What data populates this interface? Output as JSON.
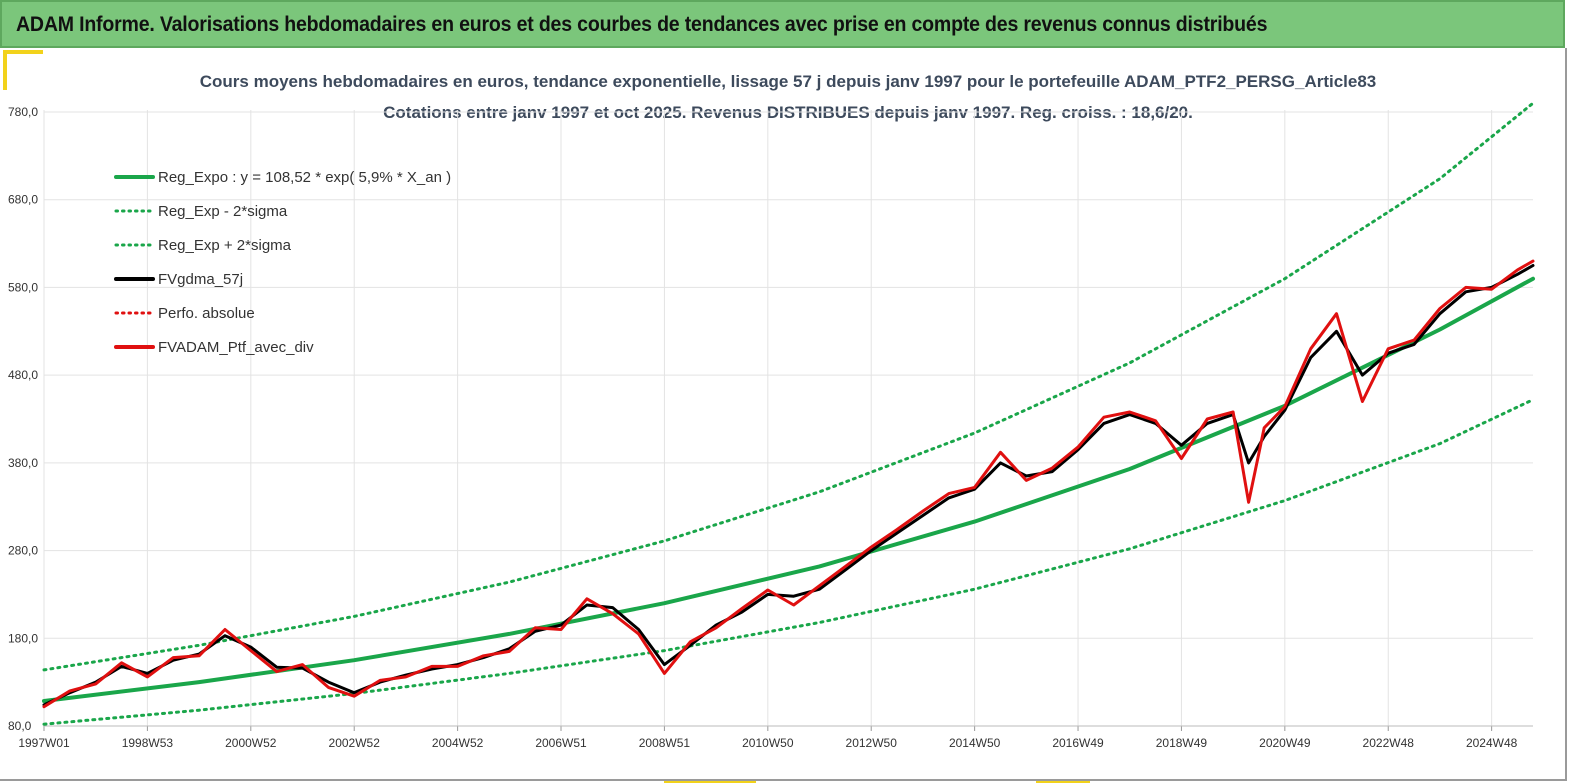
{
  "header": {
    "title": "ADAM Informe. Valorisations hebdomadaires en euros et des courbes de tendances avec prise en compte des revenus connus distribués"
  },
  "colors": {
    "header_bg": "#7bc67b",
    "reg_green": "#1aa64a",
    "black": "#000000",
    "red": "#e01010",
    "grid": "#e3e3e3"
  },
  "chart_data": {
    "type": "line",
    "title": "Cours moyens hebdomadaires  en euros, tendance exponentielle, lissage 57 j depuis janv 1997 pour le portefeuille ADAM_PTF2_PERSG_Article83",
    "subtitle": "Cotations  entre janv 1997 et oct 2025. Revenus DISTRIBUES depuis janv 1997. Reg. croiss. : 18,6/20.",
    "xlabel": "",
    "ylabel": "",
    "ylim": [
      80,
      790
    ],
    "yticks": [
      "780,0",
      "680,0",
      "580,0",
      "480,0",
      "380,0",
      "280,0",
      "180,0",
      "80,0"
    ],
    "ytick_values": [
      780,
      680,
      580,
      480,
      380,
      280,
      180,
      80
    ],
    "xticks": [
      "1997W01",
      "1998W53",
      "2000W52",
      "2002W52",
      "2004W52",
      "2006W51",
      "2008W51",
      "2010W50",
      "2012W50",
      "2014W50",
      "2016W49",
      "2018W49",
      "2020W49",
      "2022W48",
      "2024W48"
    ],
    "xtick_years": [
      1997.0,
      1999.0,
      2001.0,
      2003.0,
      2005.0,
      2007.0,
      2009.0,
      2011.0,
      2013.0,
      2015.0,
      2017.0,
      2019.0,
      2021.0,
      2023.0,
      2025.0
    ],
    "xlim": [
      1997.0,
      2025.8
    ],
    "legend_position": "top-left",
    "legend": [
      {
        "label": "Reg_Expo : y = 108,52 * exp( 5,9% *  X_an )",
        "style": "solid",
        "color": "#1aa64a"
      },
      {
        "label": "Reg_Exp - 2*sigma",
        "style": "dotted",
        "color": "#1aa64a"
      },
      {
        "label": "Reg_Exp + 2*sigma",
        "style": "dotted",
        "color": "#1aa64a"
      },
      {
        "label": "FVgdma_57j",
        "style": "solid",
        "color": "#000000"
      },
      {
        "label": "Perfo. absolue",
        "style": "dotted",
        "color": "#e01010"
      },
      {
        "label": "FVADAM_Ptf_avec_div",
        "style": "solid",
        "color": "#e01010"
      }
    ],
    "series": [
      {
        "name": "Reg_Expo : y = 108,52 * exp( 5,9% *  X_an )",
        "x": [
          1997.0,
          2000.0,
          2003.0,
          2006.0,
          2009.0,
          2012.0,
          2015.0,
          2018.0,
          2021.0,
          2024.0,
          2025.8
        ],
        "values": [
          108.5,
          130,
          155,
          185,
          220,
          262,
          313,
          373,
          445,
          532,
          590
        ]
      },
      {
        "name": "Reg_Exp - 2*sigma",
        "x": [
          1997.0,
          2000.0,
          2003.0,
          2006.0,
          2009.0,
          2012.0,
          2015.0,
          2018.0,
          2021.0,
          2024.0,
          2025.8
        ],
        "values": [
          82,
          98,
          117,
          140,
          166,
          198,
          236,
          282,
          337,
          402,
          452
        ]
      },
      {
        "name": "Reg_Exp + 2*sigma",
        "x": [
          1997.0,
          2000.0,
          2003.0,
          2006.0,
          2009.0,
          2012.0,
          2015.0,
          2018.0,
          2021.0,
          2024.0,
          2025.8
        ],
        "values": [
          144,
          172,
          205,
          244,
          291,
          347,
          414,
          494,
          590,
          704,
          790
        ]
      },
      {
        "name": "FVgdma_57j",
        "x": [
          1997.0,
          1997.5,
          1998.0,
          1998.5,
          1999.0,
          1999.5,
          2000.0,
          2000.5,
          2001.0,
          2001.5,
          2002.0,
          2002.5,
          2003.0,
          2003.5,
          2004.0,
          2004.5,
          2005.0,
          2005.5,
          2006.0,
          2006.5,
          2007.0,
          2007.5,
          2008.0,
          2008.5,
          2009.0,
          2009.5,
          2010.0,
          2010.5,
          2011.0,
          2011.5,
          2012.0,
          2012.5,
          2013.0,
          2013.5,
          2014.0,
          2014.5,
          2015.0,
          2015.5,
          2016.0,
          2016.5,
          2017.0,
          2017.5,
          2018.0,
          2018.5,
          2019.0,
          2019.5,
          2020.0,
          2020.3,
          2020.6,
          2021.0,
          2021.5,
          2022.0,
          2022.5,
          2023.0,
          2023.5,
          2024.0,
          2024.5,
          2025.0,
          2025.5,
          2025.8
        ],
        "values": [
          104,
          118,
          130,
          148,
          140,
          155,
          162,
          183,
          170,
          147,
          146,
          130,
          118,
          130,
          138,
          145,
          150,
          158,
          168,
          188,
          195,
          218,
          215,
          190,
          150,
          172,
          195,
          210,
          230,
          228,
          236,
          258,
          280,
          300,
          320,
          340,
          350,
          380,
          365,
          370,
          395,
          425,
          435,
          425,
          400,
          425,
          435,
          380,
          410,
          440,
          500,
          530,
          480,
          505,
          515,
          550,
          575,
          580,
          595,
          605
        ]
      },
      {
        "name": "FVADAM_Ptf_avec_div",
        "x": [
          1997.0,
          1997.5,
          1998.0,
          1998.5,
          1999.0,
          1999.5,
          2000.0,
          2000.5,
          2001.0,
          2001.5,
          2002.0,
          2002.5,
          2003.0,
          2003.5,
          2004.0,
          2004.5,
          2005.0,
          2005.5,
          2006.0,
          2006.5,
          2007.0,
          2007.5,
          2008.0,
          2008.5,
          2009.0,
          2009.5,
          2010.0,
          2010.5,
          2011.0,
          2011.5,
          2012.0,
          2012.5,
          2013.0,
          2013.5,
          2014.0,
          2014.5,
          2015.0,
          2015.5,
          2016.0,
          2016.5,
          2017.0,
          2017.5,
          2018.0,
          2018.5,
          2019.0,
          2019.5,
          2020.0,
          2020.3,
          2020.6,
          2021.0,
          2021.5,
          2022.0,
          2022.5,
          2023.0,
          2023.5,
          2024.0,
          2024.5,
          2025.0,
          2025.5,
          2025.8
        ],
        "values": [
          102,
          120,
          128,
          152,
          136,
          158,
          160,
          190,
          166,
          142,
          150,
          124,
          114,
          132,
          136,
          148,
          148,
          160,
          165,
          192,
          190,
          225,
          208,
          185,
          140,
          176,
          192,
          214,
          235,
          218,
          240,
          262,
          284,
          304,
          325,
          345,
          352,
          392,
          360,
          374,
          398,
          432,
          438,
          428,
          385,
          430,
          438,
          335,
          420,
          444,
          510,
          550,
          450,
          510,
          520,
          556,
          580,
          578,
          600,
          610
        ]
      }
    ]
  }
}
